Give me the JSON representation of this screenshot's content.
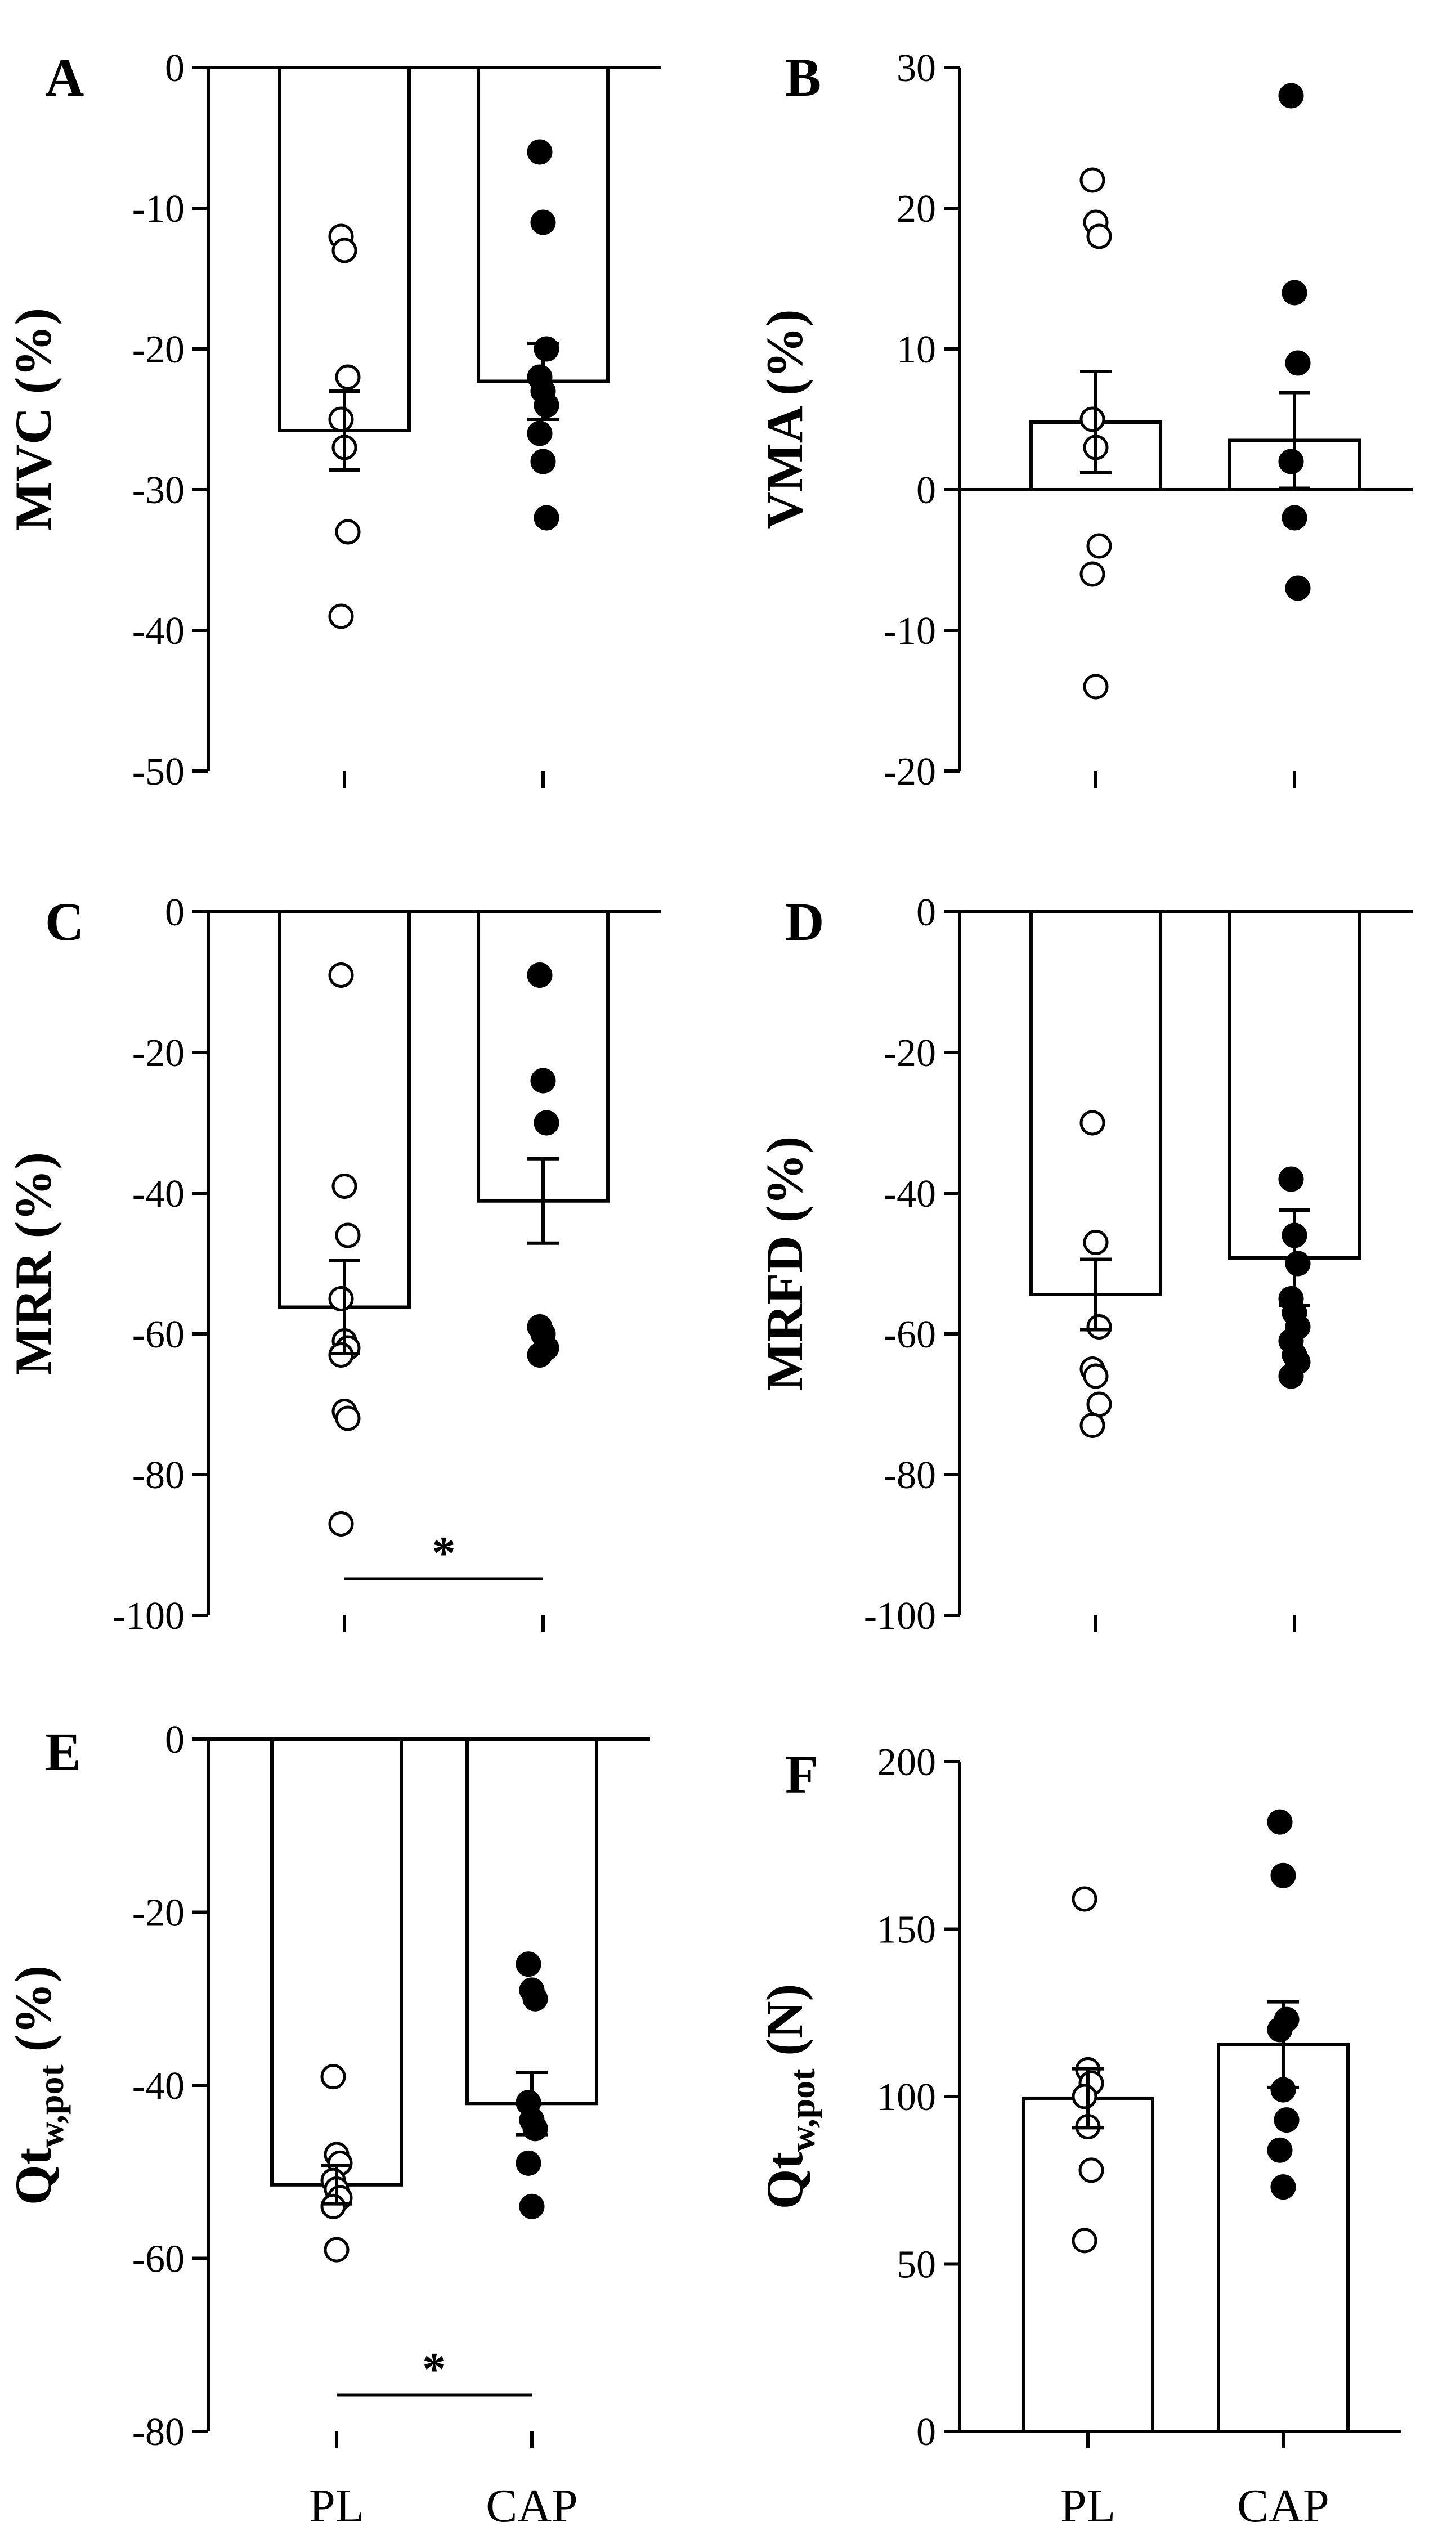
{
  "chart_data": [
    {
      "type": "bar",
      "panel": "A",
      "ylabel": "MVC (%)",
      "categories": [
        "PL",
        "CAP"
      ],
      "ylim": [
        -50,
        0
      ],
      "yticks": [
        0,
        -10,
        -20,
        -30,
        -40,
        -50
      ],
      "bars": [
        {
          "category": "PL",
          "mean": -25.8,
          "sem": 2.8,
          "points": [
            -12,
            -13,
            -22,
            -25,
            -27,
            -33,
            -39
          ],
          "marker": "open"
        },
        {
          "category": "CAP",
          "mean": -22.3,
          "sem": 2.7,
          "points": [
            -6,
            -11,
            -20,
            -22,
            -23,
            -24,
            -26,
            -28,
            -32
          ],
          "marker": "filled"
        }
      ],
      "significance": null
    },
    {
      "type": "bar",
      "panel": "B",
      "ylabel": "VMA (%)",
      "categories": [
        "PL",
        "CAP"
      ],
      "ylim": [
        -20,
        30
      ],
      "yticks": [
        30,
        20,
        10,
        0,
        -10,
        -20
      ],
      "bars": [
        {
          "category": "PL",
          "mean": 4.8,
          "sem": 3.6,
          "points": [
            22,
            19,
            18,
            5,
            3,
            -4,
            -6,
            -14
          ],
          "marker": "open"
        },
        {
          "category": "CAP",
          "mean": 3.5,
          "sem": 3.4,
          "points": [
            28,
            14,
            9,
            2,
            -2,
            -7
          ],
          "marker": "filled"
        }
      ],
      "significance": null
    },
    {
      "type": "bar",
      "panel": "C",
      "ylabel": "MRR (%)",
      "categories": [
        "PL",
        "CAP"
      ],
      "ylim": [
        -100,
        0
      ],
      "yticks": [
        0,
        -20,
        -40,
        -60,
        -80,
        -100
      ],
      "bars": [
        {
          "category": "PL",
          "mean": -56.2,
          "sem": 6.6,
          "points": [
            -9,
            -39,
            -46,
            -55,
            -61,
            -62,
            -63,
            -71,
            -72,
            -87
          ],
          "marker": "open"
        },
        {
          "category": "CAP",
          "mean": -41.1,
          "sem": 6.0,
          "points": [
            -9,
            -24,
            -30,
            -59,
            -60,
            -62,
            -63
          ],
          "marker": "filled"
        }
      ],
      "significance": "*"
    },
    {
      "type": "bar",
      "panel": "D",
      "ylabel": "MRFD (%)",
      "categories": [
        "PL",
        "CAP"
      ],
      "ylim": [
        -100,
        0
      ],
      "yticks": [
        0,
        -20,
        -40,
        -60,
        -80,
        -100
      ],
      "bars": [
        {
          "category": "PL",
          "mean": -54.4,
          "sem": 5.0,
          "points": [
            -30,
            -47,
            -59,
            -65,
            -66,
            -70,
            -73
          ],
          "marker": "open"
        },
        {
          "category": "CAP",
          "mean": -49.2,
          "sem": 6.8,
          "points": [
            -38,
            -46,
            -50,
            -55,
            -57,
            -59,
            -61,
            -63,
            -64,
            -66
          ],
          "marker": "filled"
        }
      ],
      "significance": null
    },
    {
      "type": "bar",
      "panel": "E",
      "ylabel": "Qt",
      "ylabel_sub": "w,pot",
      "ylabel_unit": " (%)",
      "categories": [
        "PL",
        "CAP"
      ],
      "ylim": [
        -80,
        0
      ],
      "yticks": [
        0,
        -20,
        -40,
        -60,
        -80
      ],
      "bars": [
        {
          "category": "PL",
          "mean": -51.5,
          "sem": 2.2,
          "points": [
            -39,
            -48,
            -49,
            -51,
            -52,
            -53,
            -54,
            -59
          ],
          "marker": "open"
        },
        {
          "category": "CAP",
          "mean": -42.1,
          "sem": 3.6,
          "points": [
            -26,
            -29,
            -30,
            -42,
            -44,
            -45,
            -49,
            -54
          ],
          "marker": "filled"
        }
      ],
      "significance": "*"
    },
    {
      "type": "bar",
      "panel": "F",
      "ylabel": "Qt",
      "ylabel_sub": "w,pot",
      "ylabel_unit": " (N)",
      "categories": [
        "PL",
        "CAP"
      ],
      "ylim": [
        0,
        200
      ],
      "yticks": [
        200,
        150,
        100,
        50,
        0
      ],
      "bars": [
        {
          "category": "PL",
          "mean": 99.5,
          "sem": 8.8,
          "points": [
            159,
            108,
            104,
            100,
            91,
            78,
            57
          ],
          "marker": "open"
        },
        {
          "category": "CAP",
          "mean": 115.5,
          "sem": 12.8,
          "points": [
            182,
            166,
            123,
            120,
            102,
            93,
            84,
            73
          ],
          "marker": "filled"
        }
      ],
      "significance": null
    }
  ]
}
